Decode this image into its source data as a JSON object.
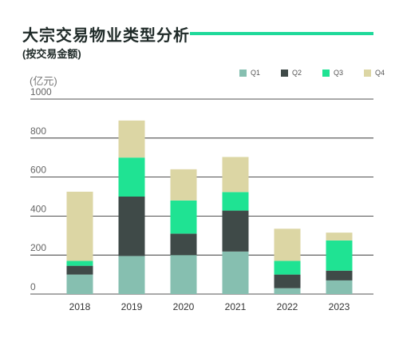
{
  "header": {
    "title": "大宗交易物业类型分析",
    "subtitle": "(按交易金额)"
  },
  "colors": {
    "accent": "#1fd99a",
    "grid": "#1a1a1a",
    "tick_text": "#666666"
  },
  "chart_data": {
    "type": "bar",
    "stacked": true,
    "title": "大宗交易物业类型分析",
    "subtitle": "(按交易金额)",
    "ylabel": "(亿元)",
    "xlabel": "",
    "categories": [
      "2018",
      "2019",
      "2020",
      "2021",
      "2022",
      "2023"
    ],
    "series": [
      {
        "name": "Q1",
        "color": "#86bfb0",
        "values": [
          100,
          195,
          200,
          218,
          30,
          70
        ]
      },
      {
        "name": "Q2",
        "color": "#3f4a48",
        "values": [
          45,
          305,
          110,
          210,
          70,
          50
        ]
      },
      {
        "name": "Q3",
        "color": "#1fe393",
        "values": [
          25,
          200,
          170,
          95,
          70,
          155
        ]
      },
      {
        "name": "Q4",
        "color": "#dcd6a4",
        "values": [
          355,
          190,
          160,
          180,
          165,
          40
        ]
      }
    ],
    "ylim": [
      0,
      1000
    ],
    "yticks": [
      "0",
      "200",
      "400",
      "600",
      "800",
      "1000"
    ],
    "grid": true,
    "legend_position": "top-right"
  }
}
